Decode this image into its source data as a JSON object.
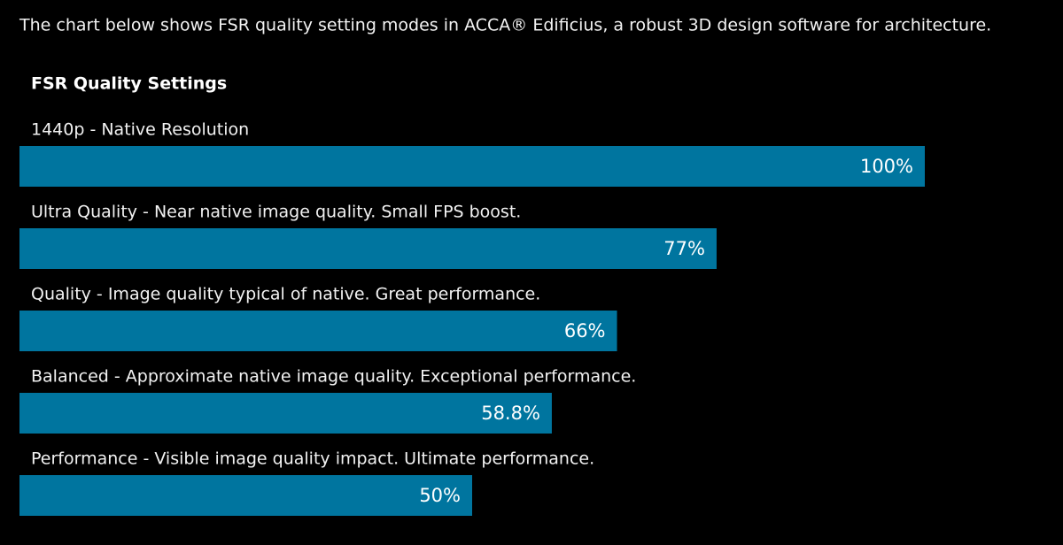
{
  "chart_data": {
    "type": "bar",
    "orientation": "horizontal",
    "intro": "The chart below shows FSR quality setting modes in ACCA® Edificius, a robust 3D design software for architecture.",
    "title": "FSR Quality Settings",
    "categories": [
      "1440p - Native Resolution",
      "Ultra Quality - Near native image quality. Small FPS boost.",
      "Quality - Image quality typical of native. Great performance.",
      "Balanced - Approximate native image quality. Exceptional performance.",
      "Performance - Visible image quality impact. Ultimate performance."
    ],
    "values": [
      100,
      77,
      66,
      58.8,
      50
    ],
    "value_labels": [
      "100%",
      "77%",
      "66%",
      "58.8%",
      "50%"
    ],
    "color": "#00759f",
    "xlim": [
      0,
      100
    ]
  }
}
